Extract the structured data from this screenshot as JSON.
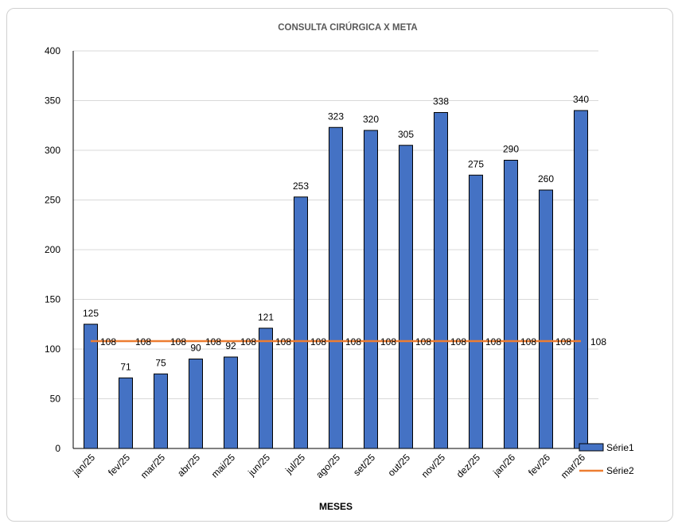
{
  "chart_data": {
    "type": "bar",
    "title": "CONSULTA CIRÚRGICA X META",
    "xlabel": "MESES",
    "ylabel": "",
    "ylim": [
      0,
      400
    ],
    "yticks": [
      0,
      50,
      100,
      150,
      200,
      250,
      300,
      350,
      400
    ],
    "grid": true,
    "legend_position": "bottom-right",
    "categories": [
      "jan/25",
      "fev/25",
      "mar/25",
      "abr/25",
      "mai/25",
      "jun/25",
      "jul/25",
      "ago/25",
      "set/25",
      "out/25",
      "nov/25",
      "dez/25",
      "jan/26",
      "fev/26",
      "mar/26"
    ],
    "series": [
      {
        "name": "Série1",
        "type": "bar",
        "color": "#4472C4",
        "values": [
          125,
          71,
          75,
          90,
          92,
          121,
          253,
          323,
          320,
          305,
          338,
          275,
          290,
          260,
          340
        ]
      },
      {
        "name": "Série2",
        "type": "line",
        "color": "#ED7D31",
        "values": [
          108,
          108,
          108,
          108,
          108,
          108,
          108,
          108,
          108,
          108,
          108,
          108,
          108,
          108,
          108
        ]
      }
    ]
  }
}
